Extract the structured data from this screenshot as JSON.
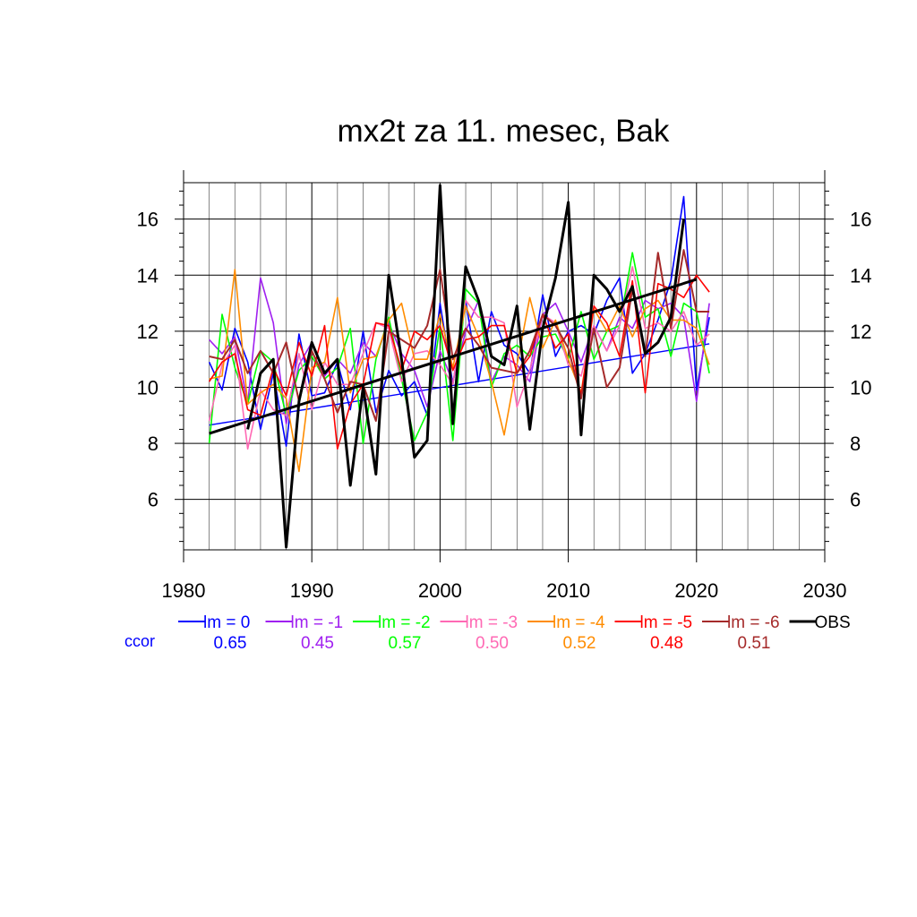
{
  "chart_data": {
    "type": "line",
    "title": "mx2t za 11. mesec, Bak",
    "xlim": [
      1980,
      2030
    ],
    "ylim": [
      4.2,
      17.3
    ],
    "x_ticks": [
      1980,
      1990,
      2000,
      2010,
      2020,
      2030
    ],
    "y_ticks": [
      6,
      8,
      10,
      12,
      14,
      16
    ],
    "grid": true,
    "legend_position": "bottom",
    "ccor_label": "ccor",
    "years": [
      1982,
      1983,
      1984,
      1985,
      1986,
      1987,
      1988,
      1989,
      1990,
      1991,
      1992,
      1993,
      1994,
      1995,
      1996,
      1997,
      1998,
      1999,
      2000,
      2001,
      2002,
      2003,
      2004,
      2005,
      2006,
      2007,
      2008,
      2009,
      2010,
      2011,
      2012,
      2013,
      2014,
      2015,
      2016,
      2017,
      2018,
      2019,
      2020,
      2021
    ],
    "series": [
      {
        "name": "lm = 0",
        "color": "#0000ff",
        "ccor": "0.65",
        "width": 1.6,
        "values": [
          10.9,
          9.9,
          12.1,
          10.9,
          8.5,
          10.5,
          7.9,
          11.9,
          9.7,
          9.8,
          10.9,
          9.2,
          12.0,
          9.1,
          10.6,
          9.7,
          10.2,
          9.0,
          13.0,
          10.1,
          13.1,
          10.2,
          12.7,
          11.5,
          11.2,
          10.5,
          13.3,
          11.1,
          12.0,
          12.2,
          11.9,
          13.1,
          13.9,
          10.5,
          11.2,
          12.4,
          13.8,
          16.8,
          9.9,
          12.5
        ],
        "trend": [
          8.65,
          11.55
        ]
      },
      {
        "name": "lm = -1",
        "color": "#a020f0",
        "ccor": "0.45",
        "width": 1.6,
        "values": [
          11.7,
          11.2,
          11.8,
          9.4,
          13.9,
          12.3,
          8.7,
          10.8,
          11.6,
          10.4,
          11.0,
          10.5,
          11.6,
          11.1,
          12.3,
          11.2,
          10.6,
          9.3,
          11.3,
          10.2,
          12.0,
          13.1,
          10.2,
          11.1,
          10.8,
          10.2,
          12.6,
          13.0,
          12.0,
          10.9,
          12.2,
          11.3,
          12.5,
          12.1,
          13.1,
          12.8,
          13.0,
          12.5,
          9.5,
          13.0
        ]
      },
      {
        "name": "lm = -2",
        "color": "#00ff00",
        "ccor": "0.57",
        "width": 1.6,
        "values": [
          8.0,
          12.6,
          10.7,
          9.4,
          11.3,
          10.9,
          9.0,
          10.6,
          11.1,
          10.3,
          10.7,
          12.1,
          8.0,
          11.0,
          12.5,
          10.3,
          8.1,
          9.1,
          12.2,
          8.1,
          13.5,
          13.0,
          10.0,
          11.2,
          11.5,
          11.1,
          11.8,
          11.9,
          11.0,
          12.7,
          11.0,
          12.0,
          12.2,
          14.8,
          12.5,
          12.8,
          11.1,
          13.0,
          12.7,
          10.5
        ]
      },
      {
        "name": "lm = -3",
        "color": "#ff69b4",
        "ccor": "0.50",
        "width": 1.6,
        "values": [
          8.8,
          10.8,
          11.5,
          7.8,
          9.9,
          9.2,
          9.0,
          11.2,
          9.2,
          10.9,
          10.1,
          10.1,
          11.2,
          12.3,
          12.1,
          10.2,
          11.2,
          11.3,
          10.8,
          10.1,
          13.1,
          12.5,
          12.5,
          12.3,
          9.3,
          10.6,
          12.6,
          12.3,
          10.8,
          10.4,
          12.2,
          11.3,
          12.2,
          14.3,
          12.1,
          12.3,
          12.0,
          12.7,
          11.5,
          11.9
        ]
      },
      {
        "name": "lm = -4",
        "color": "#ff8c00",
        "ccor": "0.52",
        "width": 1.6,
        "values": [
          10.3,
          10.4,
          14.2,
          9.4,
          9.8,
          10.1,
          9.6,
          7.0,
          10.7,
          10.9,
          13.2,
          9.8,
          11.0,
          11.1,
          12.4,
          13.0,
          11.0,
          11.0,
          12.6,
          10.7,
          12.9,
          11.8,
          10.2,
          8.3,
          10.8,
          13.2,
          11.4,
          12.4,
          11.0,
          9.8,
          12.8,
          12.0,
          12.9,
          11.8,
          12.8,
          13.1,
          12.4,
          12.4,
          12.1,
          10.8
        ]
      },
      {
        "name": "lm = -5",
        "color": "#ff0000",
        "ccor": "0.48",
        "width": 1.6,
        "values": [
          10.2,
          10.9,
          11.2,
          9.2,
          9.0,
          10.7,
          9.7,
          11.6,
          10.4,
          12.2,
          7.8,
          9.4,
          10.1,
          12.3,
          12.2,
          10.6,
          12.0,
          11.7,
          12.2,
          10.6,
          11.7,
          11.8,
          12.2,
          12.2,
          10.5,
          11.1,
          12.6,
          11.4,
          11.9,
          9.7,
          12.9,
          12.3,
          11.1,
          13.8,
          9.8,
          13.7,
          13.5,
          13.2,
          14.0,
          13.4
        ]
      },
      {
        "name": "lm = -6",
        "color": "#a52a2a",
        "ccor": "0.51",
        "width": 2.0,
        "values": [
          11.1,
          11.0,
          11.7,
          10.5,
          11.3,
          10.5,
          11.6,
          9.5,
          11.3,
          10.3,
          9.1,
          10.2,
          10.1,
          8.8,
          12.0,
          11.7,
          11.4,
          12.2,
          14.2,
          11.0,
          12.1,
          11.5,
          10.7,
          10.6,
          10.5,
          11.3,
          12.6,
          12.2,
          11.4,
          9.6,
          12.1,
          10.0,
          10.7,
          13.5,
          11.1,
          14.8,
          12.1,
          14.9,
          12.7,
          12.7
        ]
      },
      {
        "name": "OBS",
        "color": "#000000",
        "width": 3.0,
        "values": [
          null,
          null,
          null,
          8.5,
          10.5,
          11.0,
          4.3,
          9.5,
          11.6,
          10.5,
          11.0,
          6.5,
          10.0,
          6.9,
          14.0,
          11.0,
          7.5,
          8.1,
          17.2,
          8.7,
          14.3,
          13.1,
          11.1,
          10.8,
          12.9,
          8.5,
          12.1,
          13.9,
          16.6,
          8.3,
          14.0,
          13.5,
          12.7,
          13.6,
          11.2,
          11.6,
          12.5,
          16.0,
          null,
          null
        ],
        "trend": [
          8.35,
          13.85
        ],
        "trend_end_year": 2020
      }
    ]
  }
}
